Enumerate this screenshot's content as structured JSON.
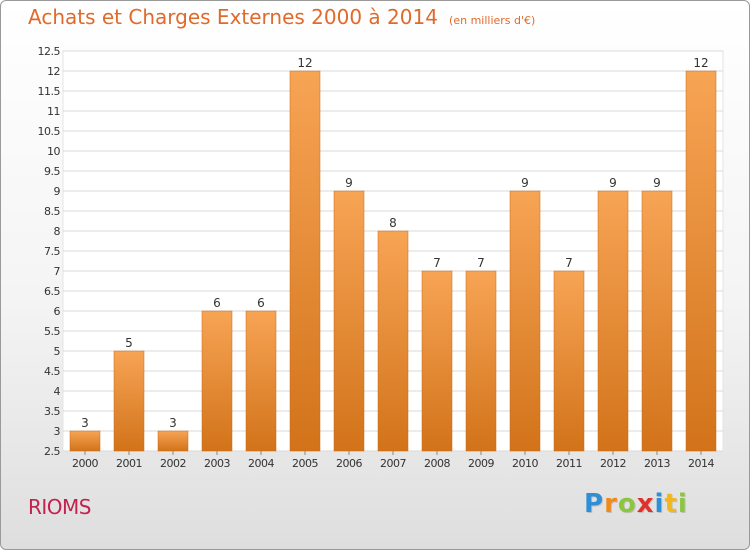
{
  "header": {
    "title": "Achats et Charges Externes 2000 à 2014",
    "subtitle": "(en milliers d'€)"
  },
  "footer": {
    "commune": "RIOMS",
    "brand_letters": [
      {
        "char": "P",
        "color": "#2f8fd6"
      },
      {
        "char": "r",
        "color": "#f08a1c"
      },
      {
        "char": "o",
        "color": "#8cc63f"
      },
      {
        "char": "x",
        "color": "#e0322a"
      },
      {
        "char": "i",
        "color": "#2f8fd6"
      },
      {
        "char": "t",
        "color": "#f0b81c"
      },
      {
        "char": "i",
        "color": "#8cc63f"
      }
    ]
  },
  "colors": {
    "bar_top": "#f7a455",
    "bar_bottom": "#d2731a",
    "grid": "#d9d9d9",
    "axis_text": "#333333"
  },
  "chart_data": {
    "type": "bar",
    "categories": [
      "2000",
      "2001",
      "2002",
      "2003",
      "2004",
      "2005",
      "2006",
      "2007",
      "2008",
      "2009",
      "2010",
      "2011",
      "2012",
      "2013",
      "2014"
    ],
    "values": [
      3,
      5,
      3,
      6,
      6,
      12,
      9,
      8,
      7,
      7,
      9,
      7,
      9,
      9,
      12
    ],
    "data_labels": [
      "3",
      "5",
      "3",
      "6",
      "6",
      "12",
      "9",
      "8",
      "7",
      "7",
      "9",
      "7",
      "9",
      "9",
      "12"
    ],
    "ylim": [
      2.5,
      12.5
    ],
    "yticks": [
      "2.5",
      "3",
      "3.5",
      "4",
      "4.5",
      "5",
      "5.5",
      "6",
      "6.5",
      "7",
      "7.5",
      "8",
      "8.5",
      "9",
      "9.5",
      "10",
      "10.5",
      "11",
      "11.5",
      "12",
      "12.5"
    ],
    "grid": true,
    "legend": "none"
  }
}
